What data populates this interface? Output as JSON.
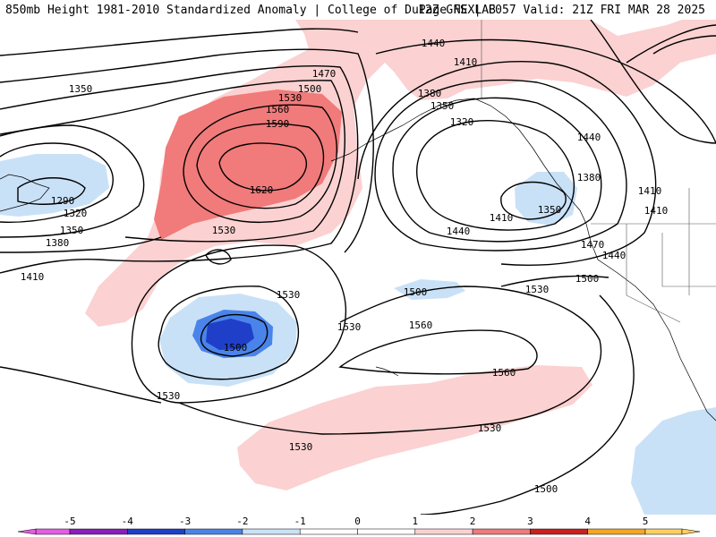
{
  "header": {
    "title_left": "850mb Height 1981-2010 Standardized Anomaly | College of DuPage NEXLAB",
    "title_right": "12Z GFS | F057 Valid: 21Z FRI MAR 28 2025"
  },
  "colors": {
    "neg_5": "#e55ce5",
    "neg_4": "#8a1dbd",
    "neg_3": "#1f3fc9",
    "neg_2": "#4a84ea",
    "neg_1": "#c9e1f7",
    "zero": "#ffffff",
    "pos_1": "#fbd1d1",
    "pos_2": "#f17a7a",
    "pos_3": "#cc1f1f",
    "pos_4": "#f5a623",
    "pos_5": "#ffd060"
  },
  "contour_labels": [
    {
      "id": "c1350a",
      "text": "1350"
    },
    {
      "id": "c1290",
      "text": "1290"
    },
    {
      "id": "c1320a",
      "text": "1320"
    },
    {
      "id": "c1350b",
      "text": "1350"
    },
    {
      "id": "c1380a",
      "text": "1380"
    },
    {
      "id": "c1410a",
      "text": "1410"
    },
    {
      "id": "c1470a",
      "text": "1470"
    },
    {
      "id": "c1500a",
      "text": "1500"
    },
    {
      "id": "c1530a",
      "text": "1530"
    },
    {
      "id": "c1560a",
      "text": "1560"
    },
    {
      "id": "c1590",
      "text": "1590"
    },
    {
      "id": "c1620",
      "text": "1620"
    },
    {
      "id": "c1530b",
      "text": "1530"
    },
    {
      "id": "c1440a",
      "text": "1440"
    },
    {
      "id": "c1410b",
      "text": "1410"
    },
    {
      "id": "c1380b",
      "text": "1380"
    },
    {
      "id": "c1350c",
      "text": "1350"
    },
    {
      "id": "c1320b",
      "text": "1320"
    },
    {
      "id": "c1440b",
      "text": "1440"
    },
    {
      "id": "c1380c",
      "text": "1380"
    },
    {
      "id": "c1350d",
      "text": "1350"
    },
    {
      "id": "c1410c",
      "text": "1410"
    },
    {
      "id": "c1410d",
      "text": "1410"
    },
    {
      "id": "c1410e",
      "text": "1410"
    },
    {
      "id": "c1440c",
      "text": "1440"
    },
    {
      "id": "c1470b",
      "text": "1470"
    },
    {
      "id": "c1440d",
      "text": "1440"
    },
    {
      "id": "c1500b",
      "text": "1500"
    },
    {
      "id": "c1530c",
      "text": "1530"
    },
    {
      "id": "c1500c",
      "text": "1500"
    },
    {
      "id": "c1530d",
      "text": "1530"
    },
    {
      "id": "c1530e",
      "text": "1530"
    },
    {
      "id": "c1500d",
      "text": "1500"
    },
    {
      "id": "c1560b",
      "text": "1560"
    },
    {
      "id": "c1560c",
      "text": "1560"
    },
    {
      "id": "c1530f",
      "text": "1530"
    },
    {
      "id": "c1530g",
      "text": "1530"
    },
    {
      "id": "c1530h",
      "text": "1530"
    },
    {
      "id": "c1500e",
      "text": "1500"
    }
  ],
  "colorbar": {
    "labels": [
      "-5",
      "-4",
      "-3",
      "-2",
      "-1",
      "0",
      "1",
      "2",
      "3",
      "4",
      "5"
    ]
  }
}
